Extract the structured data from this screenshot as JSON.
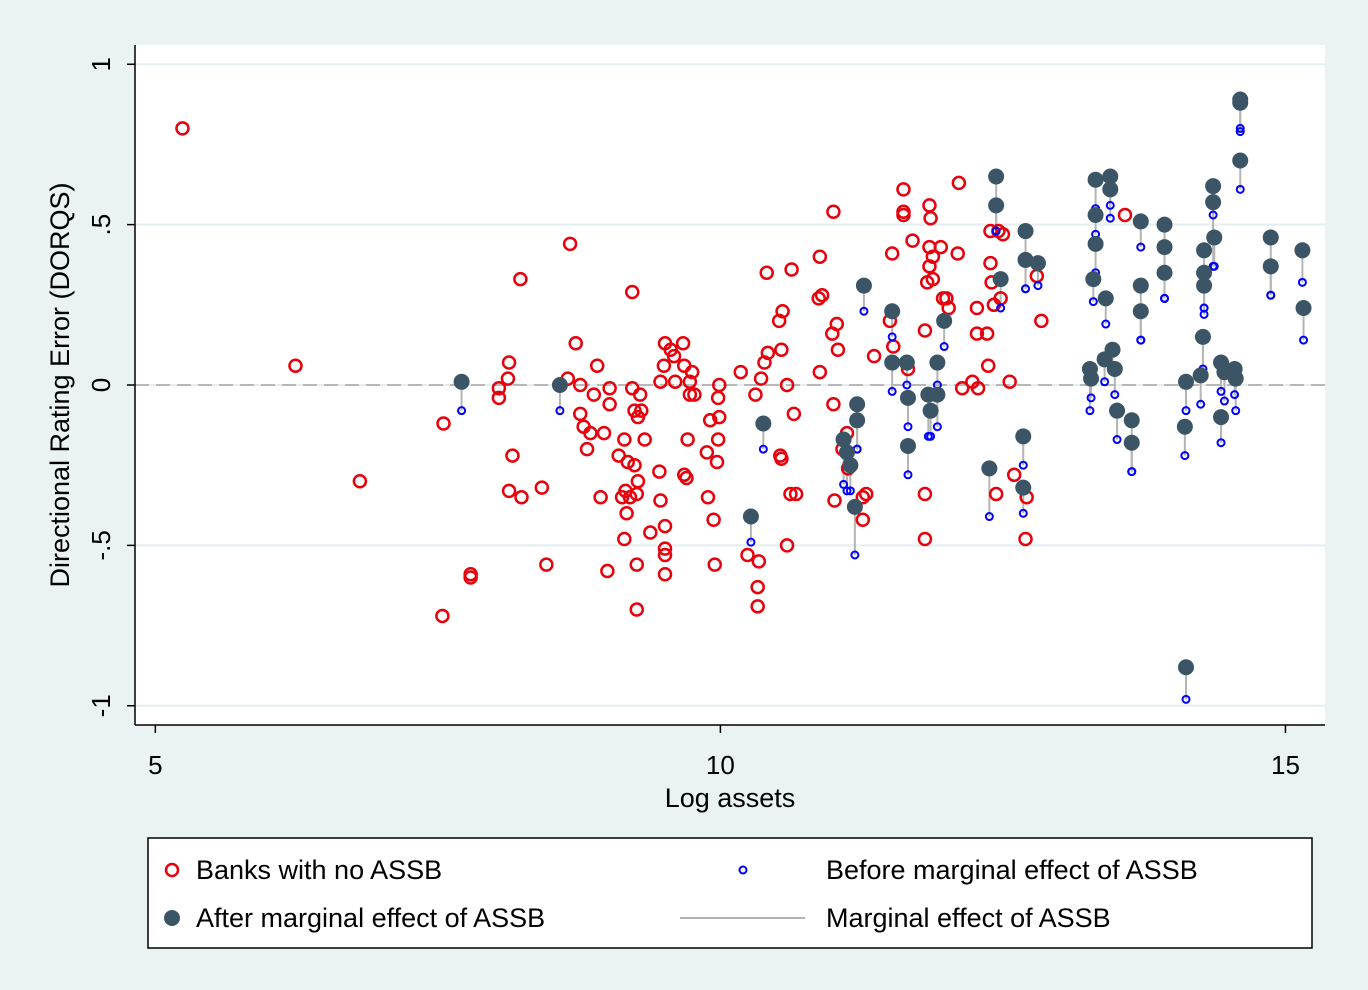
{
  "chart_data": {
    "type": "scatter",
    "x_label": "Log assets",
    "y_label": "Directional Rating Error (DORQS)",
    "xlim": [
      4.82,
      15.35
    ],
    "ylim": [
      -1.06,
      1.06
    ],
    "xticks": [
      5,
      10,
      15
    ],
    "yticks": [
      -1,
      {
        "value": -0.5,
        "label": "-.5"
      },
      0,
      {
        "value": 0.5,
        "label": ".5"
      },
      1
    ],
    "grid": true,
    "yline": 0,
    "legend": "bottom",
    "series": [
      {
        "name": "Banks with no ASSB",
        "color": "#e8000b",
        "x": [
          5.24,
          6.24,
          6.81,
          7.55,
          7.54,
          7.79,
          7.79,
          8.04,
          8.04,
          8.13,
          8.12,
          8.16,
          8.13,
          8.24,
          8.23,
          8.42,
          8.46,
          8.67,
          8.72,
          8.65,
          8.76,
          8.76,
          8.79,
          8.82,
          8.85,
          8.91,
          8.88,
          8.94,
          9.0,
          8.97,
          9.02,
          9.02,
          9.13,
          9.1,
          9.15,
          9.18,
          9.16,
          9.2,
          9.17,
          9.15,
          9.22,
          9.22,
          9.24,
          9.27,
          9.26,
          9.26,
          9.26,
          9.24,
          9.29,
          9.27,
          9.3,
          9.33,
          9.38,
          9.46,
          9.47,
          9.51,
          9.51,
          9.51,
          9.51,
          9.47,
          9.51,
          9.5,
          9.56,
          9.59,
          9.6,
          9.67,
          9.68,
          9.73,
          9.71,
          9.68,
          9.7,
          9.75,
          9.77,
          9.73,
          9.88,
          9.89,
          9.91,
          9.94,
          9.95,
          9.98,
          9.98,
          9.99,
          9.97,
          9.99,
          10.18,
          10.24,
          10.31,
          10.33,
          10.33,
          10.34,
          10.36,
          10.39,
          10.41,
          10.42,
          10.53,
          10.54,
          10.52,
          10.55,
          10.54,
          10.59,
          10.62,
          10.59,
          10.63,
          10.65,
          10.67,
          10.88,
          10.88,
          10.87,
          10.9,
          11.0,
          11.0,
          11.01,
          10.99,
          11.03,
          11.04,
          11.08,
          11.12,
          11.13,
          11.26,
          11.29,
          11.26,
          11.36,
          11.5,
          11.52,
          11.53,
          11.62,
          11.62,
          11.62,
          11.66,
          11.7,
          11.81,
          11.81,
          11.81,
          11.83,
          11.85,
          11.88,
          11.85,
          11.85,
          11.88,
          11.86,
          11.95,
          11.97,
          12.02,
          12.0,
          12.11,
          12.1,
          12.14,
          12.23,
          12.27,
          12.27,
          12.28,
          12.36,
          12.37,
          12.39,
          12.39,
          12.4,
          12.42,
          12.44,
          12.46,
          12.48,
          12.5,
          12.56,
          12.6,
          12.7,
          12.71,
          12.8,
          12.84,
          13.58
        ],
        "values": [
          0.8,
          0.06,
          -0.3,
          -0.12,
          -0.72,
          -0.6,
          -0.59,
          -0.01,
          -0.04,
          0.07,
          0.02,
          -0.22,
          -0.33,
          -0.35,
          0.33,
          -0.32,
          -0.56,
          0.44,
          0.13,
          0.02,
          0.0,
          -0.09,
          -0.13,
          -0.2,
          -0.15,
          0.06,
          -0.03,
          -0.35,
          -0.58,
          -0.15,
          -0.01,
          -0.06,
          -0.35,
          -0.22,
          -0.17,
          -0.24,
          -0.33,
          -0.35,
          -0.4,
          -0.48,
          0.29,
          -0.01,
          -0.25,
          -0.3,
          -0.34,
          -0.56,
          -0.7,
          -0.08,
          -0.03,
          -0.1,
          -0.08,
          -0.17,
          -0.46,
          -0.27,
          -0.36,
          -0.44,
          -0.51,
          -0.53,
          -0.59,
          0.01,
          0.13,
          0.06,
          0.11,
          0.09,
          0.01,
          0.13,
          0.06,
          -0.03,
          -0.17,
          -0.28,
          -0.29,
          0.04,
          -0.03,
          0.01,
          -0.21,
          -0.35,
          -0.11,
          -0.42,
          -0.56,
          -0.04,
          -0.17,
          -0.1,
          -0.24,
          0.0,
          0.04,
          -0.53,
          -0.03,
          -0.63,
          -0.69,
          -0.55,
          0.02,
          0.07,
          0.35,
          0.1,
          -0.22,
          -0.23,
          0.2,
          0.23,
          0.11,
          0.0,
          -0.34,
          -0.5,
          0.36,
          -0.09,
          -0.34,
          0.4,
          0.04,
          0.27,
          0.28,
          -0.06,
          0.54,
          -0.36,
          0.16,
          0.19,
          0.11,
          -0.2,
          -0.15,
          -0.26,
          -0.42,
          -0.34,
          -0.35,
          0.09,
          0.2,
          0.41,
          0.12,
          0.54,
          0.61,
          0.53,
          0.05,
          0.45,
          0.17,
          -0.48,
          -0.34,
          0.32,
          0.56,
          0.4,
          0.43,
          0.37,
          0.33,
          0.52,
          0.43,
          0.27,
          0.24,
          0.27,
          0.63,
          0.41,
          -0.01,
          0.01,
          0.24,
          0.16,
          -0.01,
          0.16,
          0.06,
          0.48,
          0.38,
          0.32,
          0.25,
          -0.34,
          0.48,
          0.27,
          0.47,
          0.01,
          -0.28,
          -0.48,
          -0.35,
          0.34,
          0.2,
          0.53
        ]
      },
      {
        "name": "Before marginal effect of ASSB",
        "color": "#0000ff",
        "x": [
          7.71,
          8.58,
          10.27,
          10.38,
          11.09,
          11.12,
          11.15,
          11.19,
          11.21,
          11.21,
          11.27,
          11.52,
          11.52,
          11.65,
          11.66,
          11.66,
          11.84,
          11.86,
          11.92,
          11.92,
          11.98,
          12.38,
          12.44,
          12.44,
          12.48,
          12.7,
          12.7,
          12.68,
          12.68,
          12.81,
          13.27,
          13.28,
          13.32,
          13.32,
          13.32,
          13.3,
          13.41,
          13.4,
          13.45,
          13.45,
          13.47,
          13.49,
          13.51,
          13.64,
          13.64,
          13.72,
          13.72,
          13.72,
          13.93,
          13.93,
          13.93,
          14.12,
          14.11,
          14.12,
          14.25,
          14.27,
          14.28,
          14.28,
          14.28,
          14.36,
          14.36,
          14.37,
          14.43,
          14.43,
          14.46,
          14.55,
          14.56,
          14.6,
          14.6,
          14.6,
          14.87,
          14.87,
          15.15,
          15.16
        ],
        "values": [
          -0.08,
          -0.08,
          -0.49,
          -0.2,
          -0.31,
          -0.33,
          -0.33,
          -0.53,
          -0.2,
          -0.2,
          0.23,
          -0.02,
          0.15,
          0.0,
          -0.13,
          -0.28,
          -0.16,
          -0.16,
          0.0,
          -0.13,
          0.12,
          -0.41,
          0.48,
          0.48,
          0.24,
          0.3,
          0.3,
          -0.25,
          -0.4,
          0.31,
          -0.08,
          -0.04,
          0.55,
          0.47,
          0.35,
          0.26,
          0.19,
          0.01,
          0.56,
          0.52,
          0.06,
          -0.03,
          -0.17,
          -0.27,
          -0.27,
          0.43,
          0.14,
          0.14,
          0.27,
          0.27,
          0.27,
          -0.08,
          -0.22,
          -0.98,
          -0.06,
          0.05,
          0.24,
          0.24,
          0.22,
          0.53,
          0.37,
          0.37,
          -0.02,
          -0.18,
          -0.05,
          -0.03,
          -0.08,
          0.8,
          0.79,
          0.61,
          0.28,
          0.28,
          0.32,
          0.14
        ]
      },
      {
        "name": "After marginal effect of ASSB",
        "color": "#3b5566",
        "x": [
          7.71,
          8.58,
          10.27,
          10.38,
          11.09,
          11.12,
          11.15,
          11.19,
          11.21,
          11.21,
          11.27,
          11.52,
          11.52,
          11.65,
          11.66,
          11.66,
          11.84,
          11.86,
          11.92,
          11.92,
          11.98,
          12.38,
          12.44,
          12.44,
          12.48,
          12.7,
          12.7,
          12.68,
          12.68,
          12.81,
          13.27,
          13.28,
          13.32,
          13.32,
          13.32,
          13.3,
          13.41,
          13.4,
          13.45,
          13.45,
          13.47,
          13.49,
          13.51,
          13.64,
          13.64,
          13.72,
          13.72,
          13.72,
          13.93,
          13.93,
          13.93,
          14.12,
          14.11,
          14.12,
          14.25,
          14.27,
          14.28,
          14.28,
          14.28,
          14.36,
          14.36,
          14.37,
          14.43,
          14.43,
          14.46,
          14.55,
          14.56,
          14.6,
          14.6,
          14.6,
          14.87,
          14.87,
          15.15,
          15.16
        ],
        "values": [
          0.01,
          0.0,
          -0.41,
          -0.12,
          -0.17,
          -0.21,
          -0.25,
          -0.38,
          -0.06,
          -0.11,
          0.31,
          0.07,
          0.23,
          0.07,
          -0.04,
          -0.19,
          -0.03,
          -0.08,
          0.07,
          -0.03,
          0.2,
          -0.26,
          0.65,
          0.56,
          0.33,
          0.48,
          0.39,
          -0.16,
          -0.32,
          0.38,
          0.05,
          0.02,
          0.64,
          0.53,
          0.44,
          0.33,
          0.27,
          0.08,
          0.65,
          0.61,
          0.11,
          0.05,
          -0.08,
          -0.11,
          -0.18,
          0.51,
          0.31,
          0.23,
          0.5,
          0.43,
          0.35,
          0.01,
          -0.13,
          -0.88,
          0.03,
          0.15,
          0.42,
          0.35,
          0.31,
          0.62,
          0.57,
          0.46,
          0.07,
          -0.1,
          0.04,
          0.05,
          0.02,
          0.89,
          0.88,
          0.7,
          0.46,
          0.37,
          0.42,
          0.24
        ]
      },
      {
        "name": "Marginal effect of ASSB",
        "color": "#b4b4b4"
      }
    ]
  }
}
